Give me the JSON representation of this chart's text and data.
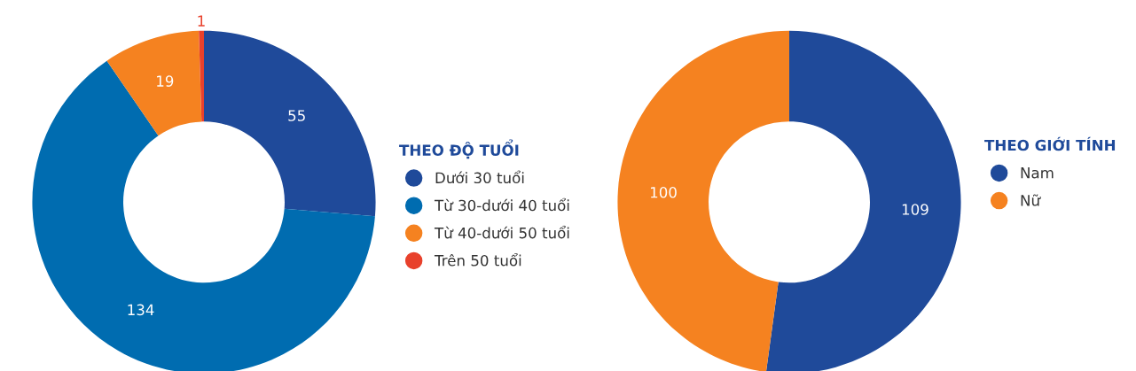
{
  "chart_data": [
    {
      "type": "donut",
      "legend_title": "THEO ĐỘ TUỔI",
      "categories": [
        "Dưới 30 tuổi",
        "Từ 30-dưới 40 tuổi",
        "Từ 40-dưới 50 tuổi",
        "Trên 50 tuổi"
      ],
      "values": [
        55,
        134,
        19,
        1
      ],
      "colors": [
        "#1f4a9a",
        "#006cb0",
        "#f58220",
        "#e8412c"
      ],
      "data_labels": true,
      "legend": "right"
    },
    {
      "type": "donut",
      "legend_title": "THEO GIỚI TÍNH",
      "categories": [
        "Nam",
        "Nữ"
      ],
      "values": [
        109,
        100
      ],
      "colors": [
        "#1f4a9a",
        "#f58220"
      ],
      "data_labels": true,
      "legend": "right"
    }
  ]
}
